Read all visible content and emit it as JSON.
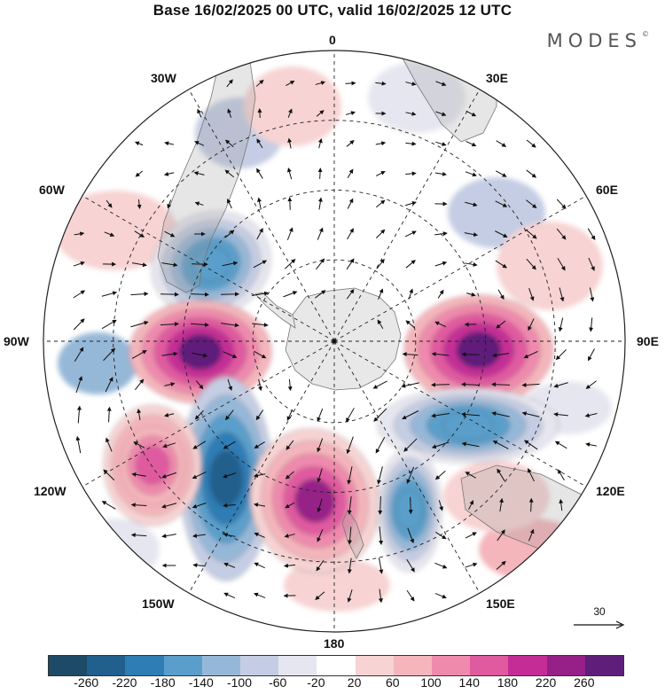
{
  "title": "Base 16/02/2025 00 UTC, valid 16/02/2025 12 UTC",
  "brand": "MODES",
  "brand_mark": "©",
  "longitude_labels": {
    "lon_0": "0",
    "lon_30e": "30E",
    "lon_60e": "60E",
    "lon_90e": "90E",
    "lon_120e": "120E",
    "lon_150e": "150E",
    "lon_180": "180",
    "lon_150w": "150W",
    "lon_120w": "120W",
    "lon_90w": "90W",
    "lon_60w": "60W",
    "lon_30w": "30W"
  },
  "reference_vector": {
    "label": "30"
  },
  "colorbar": {
    "colors": [
      "#1d4a66",
      "#215f8d",
      "#2e7db5",
      "#5a9fcb",
      "#96b8d8",
      "#c4cde3",
      "#e6e6f0",
      "#ffffff",
      "#f7d3d3",
      "#f4b5bb",
      "#ef8aad",
      "#e05aa0",
      "#c42d96",
      "#962088",
      "#5e1e7a"
    ],
    "tick_labels": [
      "-260",
      "-220",
      "-180",
      "-140",
      "-100",
      "-60",
      "-20",
      "20",
      "60",
      "100",
      "140",
      "180",
      "220",
      "260"
    ]
  },
  "anomaly_centers": [
    {
      "name": "low-southwest-atlantic",
      "sign": "negative",
      "level": -180
    },
    {
      "name": "high-southeast-pacific",
      "sign": "positive",
      "level": 260
    },
    {
      "name": "high-indian-ocean",
      "sign": "positive",
      "level": 260
    },
    {
      "name": "low-south-pacific",
      "sign": "negative",
      "level": -260
    },
    {
      "name": "high-ross-sea",
      "sign": "positive",
      "level": 220
    },
    {
      "name": "low-southern-indian",
      "sign": "negative",
      "level": -180
    },
    {
      "name": "low-tasman",
      "sign": "negative",
      "level": -180
    },
    {
      "name": "high-west-pacific",
      "sign": "positive",
      "level": 140
    }
  ]
}
